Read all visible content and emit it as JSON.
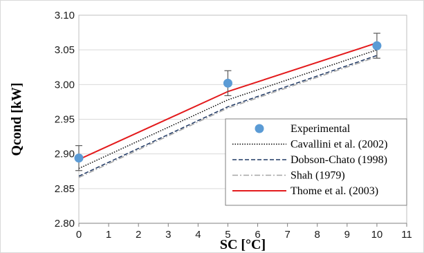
{
  "chart_data": {
    "type": "line",
    "title": "",
    "xlabel": "SC [°C]",
    "ylabel": "Qcond [kW]",
    "xlim": [
      0,
      11
    ],
    "ylim": [
      2.8,
      3.1
    ],
    "x_ticks": [
      "0",
      "1",
      "2",
      "3",
      "4",
      "5",
      "6",
      "7",
      "8",
      "9",
      "10",
      "11"
    ],
    "y_ticks": [
      "2.80",
      "2.85",
      "2.90",
      "2.95",
      "3.00",
      "3.05",
      "3.10"
    ],
    "grid": "horizontal",
    "legend_position": "bottom-right",
    "series": [
      {
        "name": "Experimental",
        "kind": "scatter",
        "color": "#5b9bd5",
        "x": [
          0,
          5,
          10
        ],
        "y": [
          2.894,
          3.002,
          3.056
        ],
        "error_upper": [
          2.912,
          3.02,
          3.074
        ],
        "error_lower": [
          2.876,
          2.984,
          3.038
        ]
      },
      {
        "name": "Cavallini et al. (2002)",
        "kind": "line",
        "style": "dotted",
        "color": "#000000",
        "x": [
          0,
          5,
          10
        ],
        "y": [
          2.879,
          2.978,
          3.05
        ]
      },
      {
        "name": "Dobson-Chato (1998)",
        "kind": "line",
        "style": "dashed",
        "color": "#1f3864",
        "x": [
          0,
          5,
          10
        ],
        "y": [
          2.868,
          2.968,
          3.042
        ]
      },
      {
        "name": "Shah (1979)",
        "kind": "line",
        "style": "dashdot",
        "color": "#a6a6a6",
        "x": [
          0,
          5,
          10
        ],
        "y": [
          2.866,
          2.966,
          3.04
        ]
      },
      {
        "name": "Thome et al. (2003)",
        "kind": "line",
        "style": "solid",
        "color": "#e31a1c",
        "x": [
          0,
          5,
          10
        ],
        "y": [
          2.892,
          2.99,
          3.06
        ]
      }
    ]
  }
}
